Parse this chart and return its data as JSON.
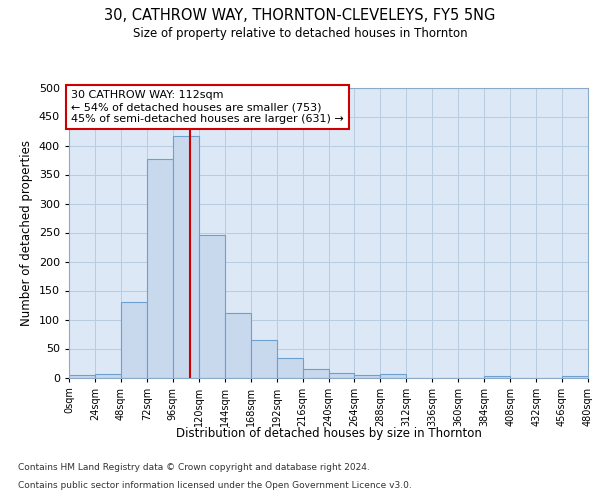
{
  "title1": "30, CATHROW WAY, THORNTON-CLEVELEYS, FY5 5NG",
  "title2": "Size of property relative to detached houses in Thornton",
  "xlabel": "Distribution of detached houses by size in Thornton",
  "ylabel": "Number of detached properties",
  "bin_edges": [
    0,
    24,
    48,
    72,
    96,
    120,
    144,
    168,
    192,
    216,
    240,
    264,
    288,
    312,
    336,
    360,
    384,
    408,
    432,
    456,
    480
  ],
  "bar_heights": [
    4,
    6,
    130,
    376,
    416,
    246,
    111,
    65,
    34,
    14,
    8,
    4,
    6,
    0,
    0,
    0,
    2,
    0,
    0,
    3
  ],
  "bar_color": "#c8d9ee",
  "bar_edge_color": "#6ca0d0",
  "vline_x": 112,
  "vline_color": "#cc0000",
  "annotation_line1": "30 CATHROW WAY: 112sqm",
  "annotation_line2": "← 54% of detached houses are smaller (753)",
  "annotation_line3": "45% of semi-detached houses are larger (631) →",
  "annotation_box_color": "#ffffff",
  "annotation_box_edge_color": "#cc0000",
  "ylim": [
    0,
    500
  ],
  "yticks": [
    0,
    50,
    100,
    150,
    200,
    250,
    300,
    350,
    400,
    450,
    500
  ],
  "tick_labels": [
    "0sqm",
    "24sqm",
    "48sqm",
    "72sqm",
    "96sqm",
    "120sqm",
    "144sqm",
    "168sqm",
    "192sqm",
    "216sqm",
    "240sqm",
    "264sqm",
    "288sqm",
    "312sqm",
    "336sqm",
    "360sqm",
    "384sqm",
    "408sqm",
    "432sqm",
    "456sqm",
    "480sqm"
  ],
  "footer1": "Contains HM Land Registry data © Crown copyright and database right 2024.",
  "footer2": "Contains public sector information licensed under the Open Government Licence v3.0.",
  "fig_background": "#ffffff",
  "ax_background": "#dce8f5",
  "grid_color": "#b8cce0"
}
